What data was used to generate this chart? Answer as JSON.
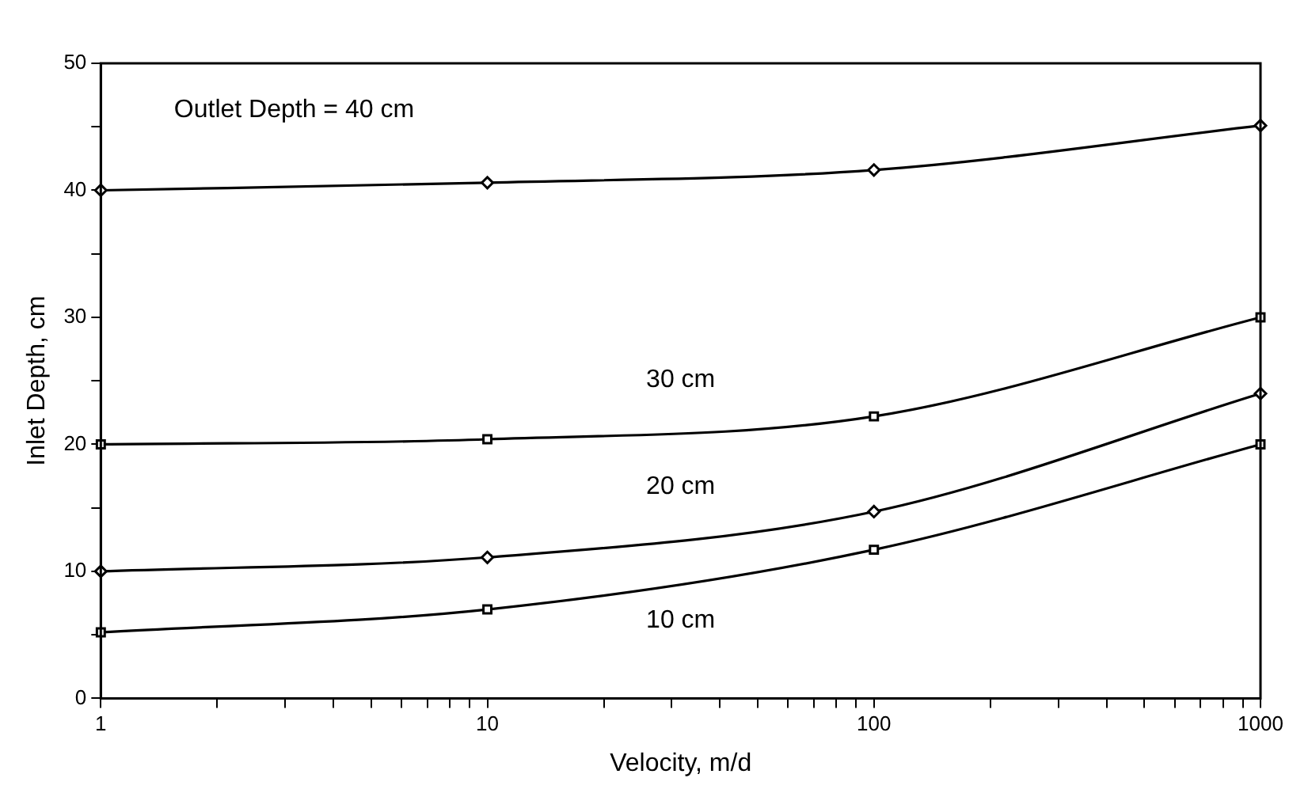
{
  "chart_data": {
    "type": "line",
    "xlabel": "Velocity, m/d",
    "ylabel": "Inlet Depth, cm",
    "x": [
      1,
      10,
      100,
      1000
    ],
    "series": [
      {
        "name": "Outlet Depth = 40 cm",
        "color": "#000000",
        "marker": "diamond",
        "values": [
          40,
          40.6,
          41.6,
          45.1
        ]
      },
      {
        "name": "30 cm",
        "color": "#000000",
        "marker": "square",
        "values": [
          20,
          20.4,
          22.2,
          30
        ]
      },
      {
        "name": "20 cm",
        "color": "#000000",
        "marker": "diamond",
        "values": [
          10,
          11.1,
          14.7,
          24
        ]
      },
      {
        "name": "10 cm",
        "color": "#000000",
        "marker": "square",
        "values": [
          5.2,
          7,
          11.7,
          20
        ]
      }
    ],
    "log": "x",
    "xlim": [
      1,
      1000
    ],
    "xticks": [
      1,
      {
        "value": 2,
        "label": null
      },
      {
        "value": 3,
        "label": null
      },
      {
        "value": 4,
        "label": null
      },
      {
        "value": 5,
        "label": null
      },
      {
        "value": 6,
        "label": null
      },
      {
        "value": 7,
        "label": null
      },
      {
        "value": 8,
        "label": null
      },
      {
        "value": 9,
        "label": null
      },
      10,
      {
        "value": 20,
        "label": null
      },
      {
        "value": 30,
        "label": null
      },
      {
        "value": 40,
        "label": null
      },
      {
        "value": 50,
        "label": null
      },
      {
        "value": 60,
        "label": null
      },
      {
        "value": 70,
        "label": null
      },
      {
        "value": 80,
        "label": null
      },
      {
        "value": 90,
        "label": null
      },
      100,
      {
        "value": 200,
        "label": null
      },
      {
        "value": 300,
        "label": null
      },
      {
        "value": 400,
        "label": null
      },
      {
        "value": 500,
        "label": null
      },
      {
        "value": 600,
        "label": null
      },
      {
        "value": 700,
        "label": null
      },
      {
        "value": 800,
        "label": null
      },
      {
        "value": 900,
        "label": null
      },
      1000
    ],
    "ylim": [
      0,
      50
    ],
    "yticks": [
      0,
      {
        "value": 5,
        "label": null
      },
      10,
      {
        "value": 15,
        "label": null
      },
      20,
      {
        "value": 25,
        "label": null
      },
      30,
      {
        "value": 35,
        "label": null
      },
      40,
      {
        "value": 45,
        "label": null
      },
      50
    ],
    "grid": false,
    "legend": false,
    "line_style": "solid"
  }
}
